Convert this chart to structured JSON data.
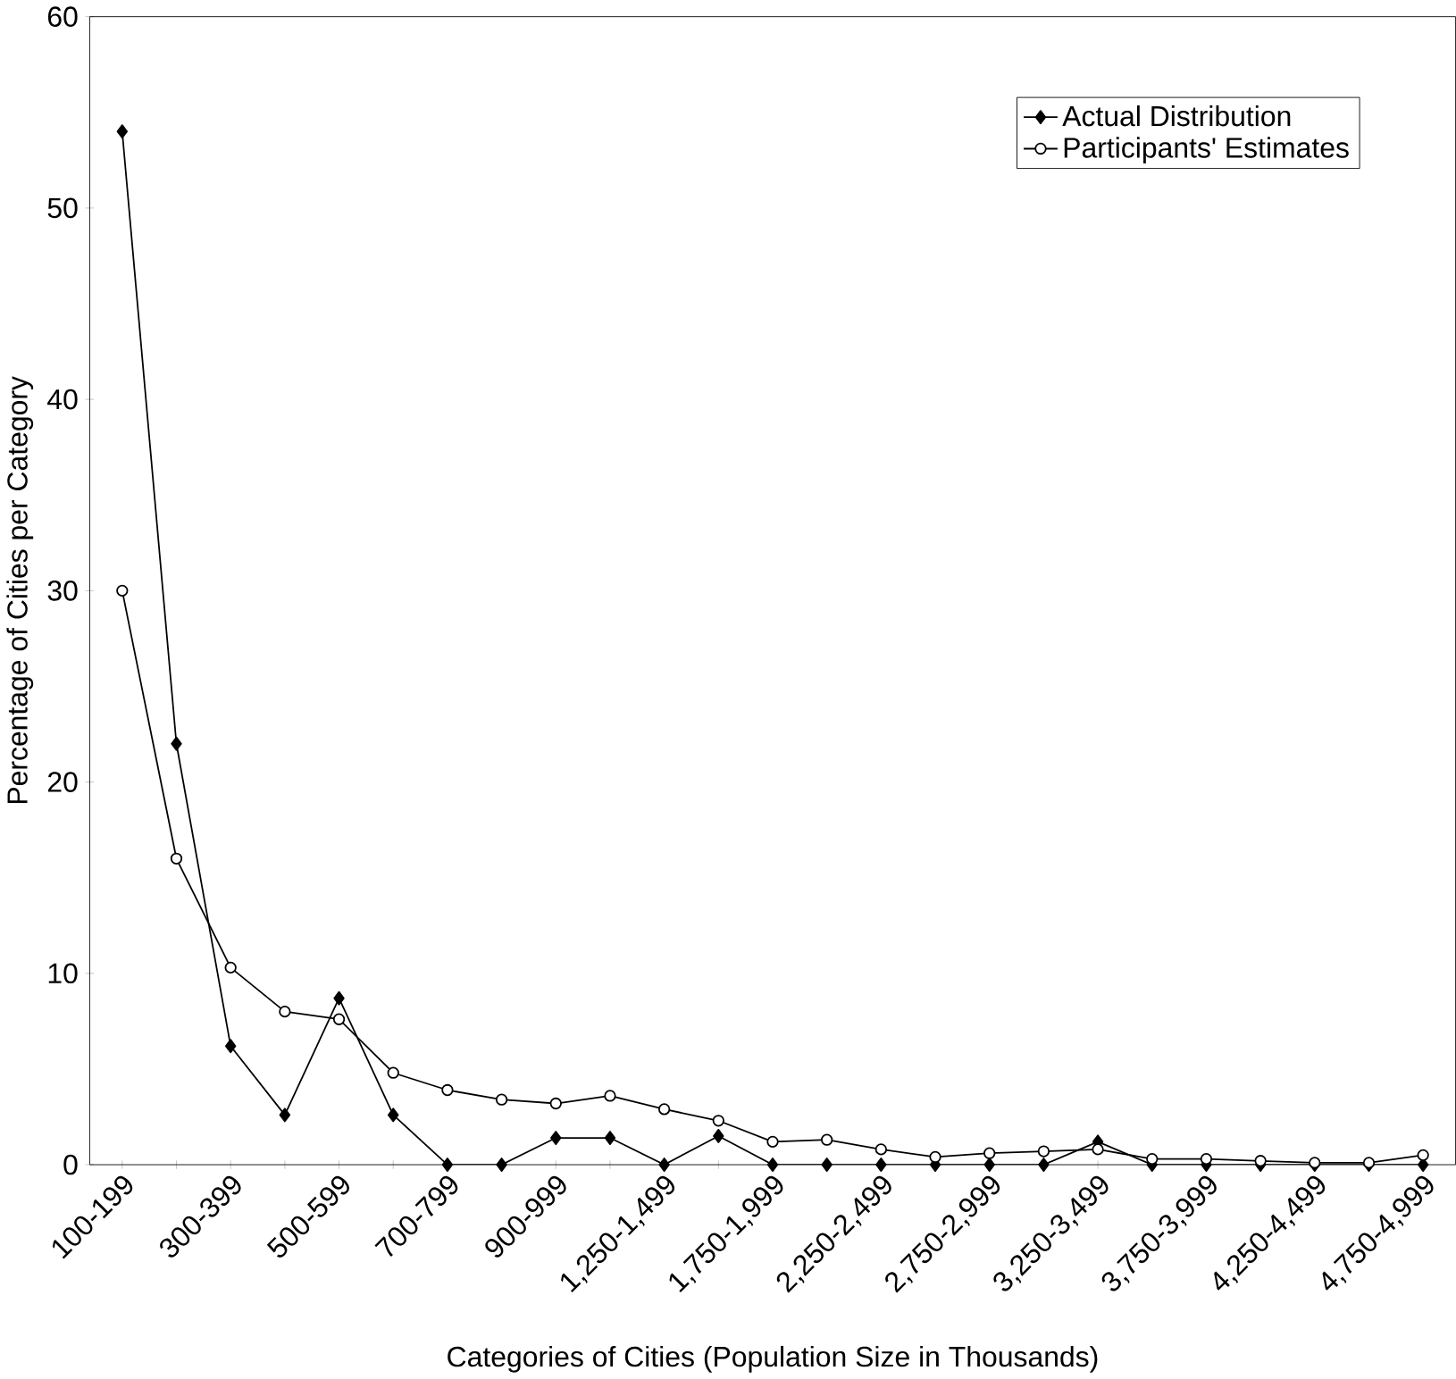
{
  "chart_data": {
    "type": "line",
    "xlabel": "Categories of Cities (Population Size in Thousands)",
    "ylabel": "Percentage of Cities per Category",
    "categories": [
      "100-199",
      null,
      "300-399",
      null,
      "500-599",
      null,
      "700-799",
      null,
      "900-999",
      null,
      "1,250-1,499",
      null,
      "1,750-1,999",
      null,
      "2,250-2,499",
      null,
      "2,750-2,999",
      null,
      "3,250-3,499",
      null,
      "3,750-3,999",
      null,
      "4,250-4,499",
      null,
      "4,750-4,999"
    ],
    "series": [
      {
        "name": "Actual Distribution",
        "color": "#000000",
        "marker": "diamond",
        "values": [
          54,
          22,
          6.2,
          2.6,
          8.7,
          2.6,
          0,
          0,
          1.4,
          1.4,
          0,
          1.5,
          0,
          0,
          0,
          0,
          0,
          0,
          1.2,
          0,
          0,
          0,
          0,
          0,
          0
        ]
      },
      {
        "name": "Participants' Estimates",
        "color": "#000000",
        "marker": "circle",
        "values": [
          30,
          16,
          10.3,
          8,
          7.6,
          4.8,
          3.9,
          3.4,
          3.2,
          3.6,
          2.9,
          2.3,
          1.2,
          1.3,
          0.8,
          0.4,
          0.6,
          0.7,
          0.8,
          0.3,
          0.3,
          0.2,
          0.1,
          0.1,
          0.5
        ]
      }
    ],
    "ylim": [
      0,
      60
    ],
    "yticks": [
      0,
      10,
      20,
      30,
      40,
      50,
      60
    ],
    "grid": false,
    "legend": "top right",
    "line_style": "solid"
  }
}
